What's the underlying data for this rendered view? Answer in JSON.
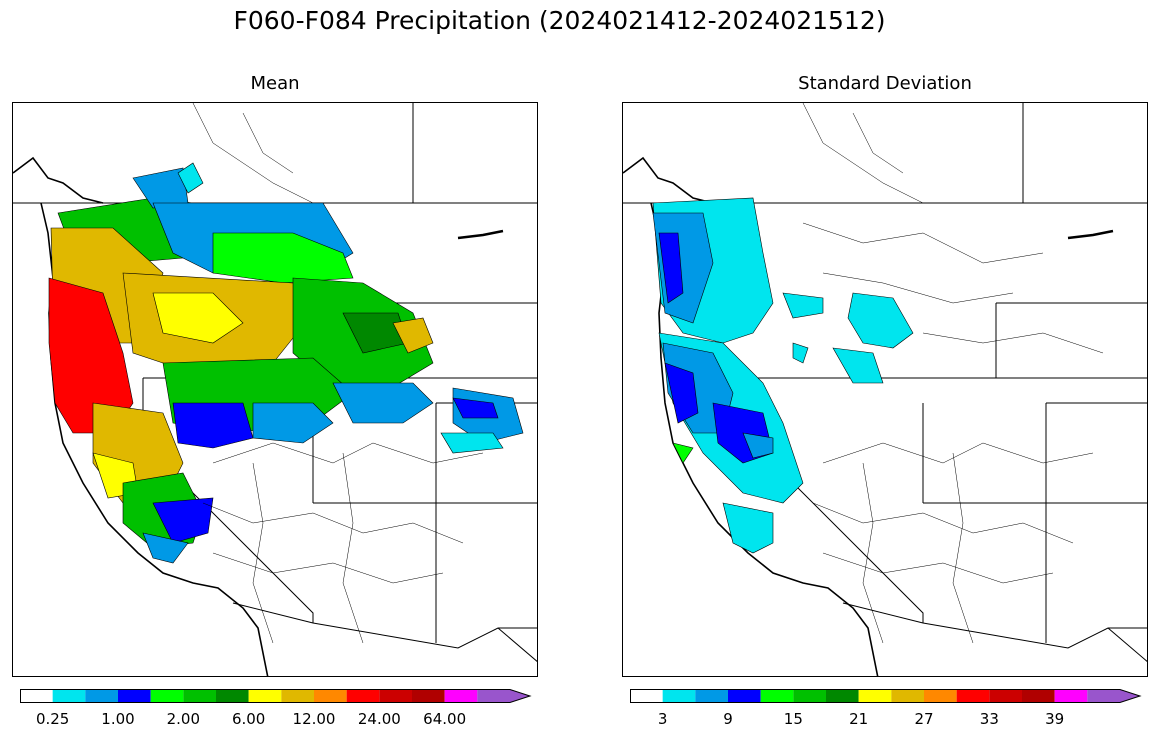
{
  "figure": {
    "title": "F060-F084 Precipitation (2024021412-2024021512)"
  },
  "panels": [
    {
      "title": "Mean",
      "colorbar": {
        "colors": [
          "#ffffff",
          "#00e5ee",
          "#0099e6",
          "#0000ff",
          "#00ff00",
          "#00c000",
          "#008800",
          "#ffff00",
          "#e0b800",
          "#ff8800",
          "#ff0000",
          "#cc0000",
          "#b00000",
          "#ff00ff",
          "#9955cc"
        ],
        "tick_labels": [
          "0.25",
          "1.00",
          "2.00",
          "6.00",
          "12.00",
          "24.00",
          "64.00"
        ],
        "extend": "max"
      }
    },
    {
      "title": "Standard Deviation",
      "colorbar": {
        "colors": [
          "#ffffff",
          "#00e5ee",
          "#0099e6",
          "#0000ff",
          "#00ff00",
          "#00c000",
          "#008800",
          "#ffff00",
          "#e0b800",
          "#ff8800",
          "#ff0000",
          "#cc0000",
          "#b00000",
          "#ff00ff",
          "#9955cc"
        ],
        "tick_labels": [
          "3",
          "9",
          "15",
          "21",
          "27",
          "33",
          "39"
        ],
        "extend": "max"
      }
    }
  ]
}
